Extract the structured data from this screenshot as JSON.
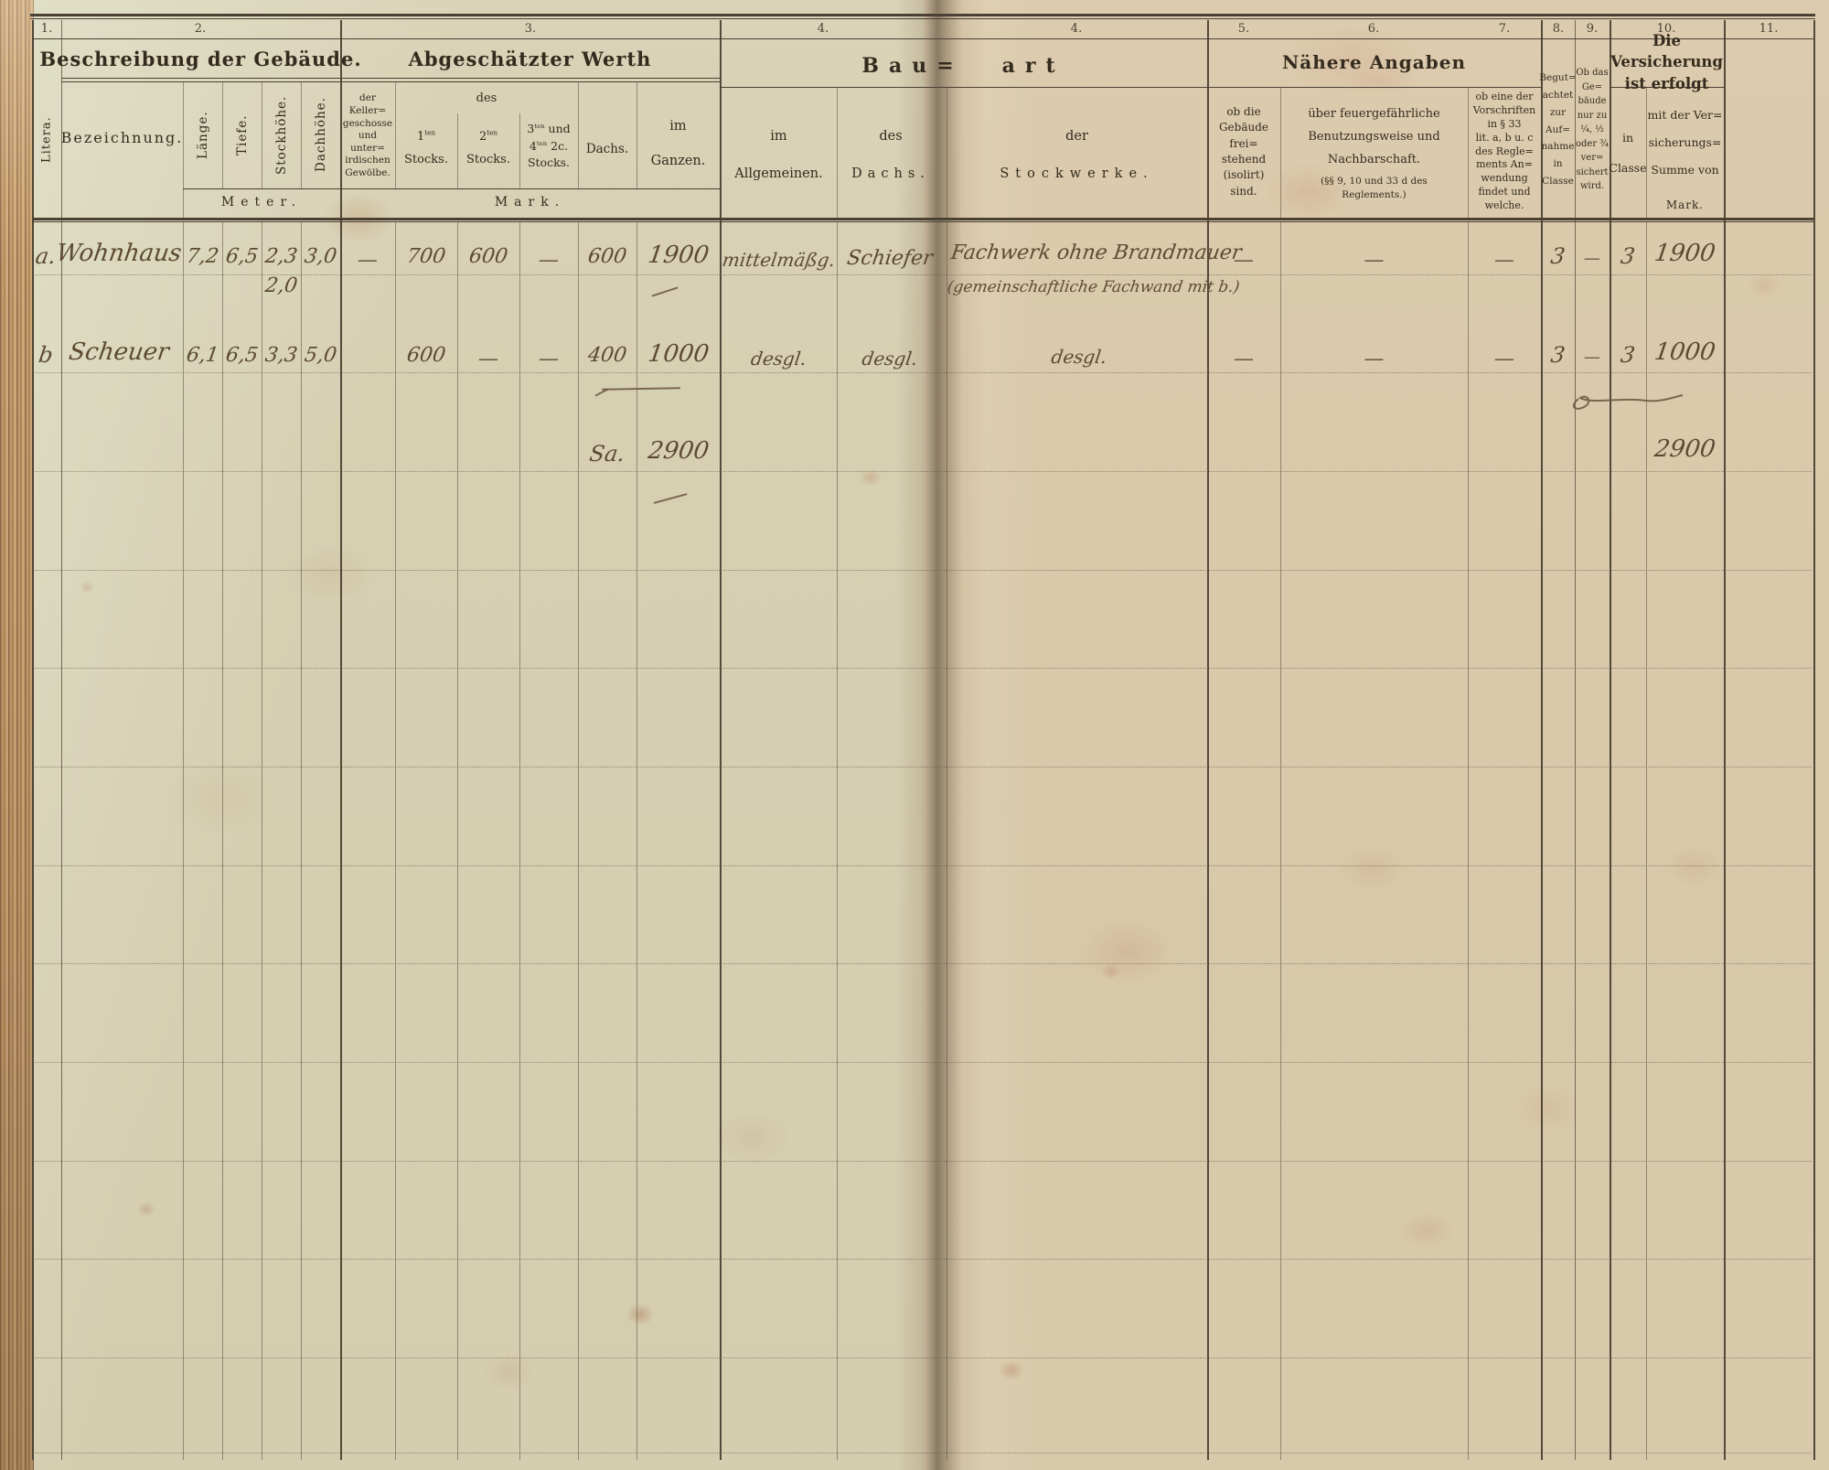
{
  "column_numbers": {
    "c1": "1.",
    "c2": "2.",
    "c3": "3.",
    "c4_left": "4.",
    "c4_right": "4.",
    "c5": "5.",
    "c6": "6.",
    "c7": "7.",
    "c8": "8.",
    "c9": "9.",
    "c10": "10.",
    "c11": "11."
  },
  "header": {
    "litera": "Litera.",
    "beschreibung_title": "Beschreibung der Gebäude.",
    "bezeichnung": "Bezeichnung.",
    "laenge": "Länge.",
    "tiefe": "Tiefe.",
    "stockhoehe": "Stockhöhe.",
    "dachhoehe": "Dachhöhe.",
    "meter_unit": "Meter.",
    "werth_title": "Abgeschätzter Werth",
    "keller_l1": "der Keller=",
    "keller_l2": "geschosse",
    "keller_l3": "und unter=",
    "keller_l4": "irdischen",
    "keller_l5": "Gewölbe.",
    "des_label": "des",
    "stock1_num": "1",
    "stock1_sup": "ten",
    "stock1_word": "Stocks.",
    "stock2_num": "2",
    "stock2_sup": "ten",
    "stock2_word": "Stocks.",
    "stock34_l1a": "3",
    "stock34_sup1": "ten",
    "stock34_l1b": " und",
    "stock34_l2a": "4",
    "stock34_sup2": "ten",
    "stock34_l2b": " 2c.",
    "stock34_word": "Stocks.",
    "dachs": "Dachs.",
    "ganzen_l1": "im",
    "ganzen_l2": "Ganzen.",
    "mark_unit": "Mark.",
    "bauart_l": "Bau=",
    "bauart_r": "art",
    "allgemeinen_l1": "im",
    "allgemeinen_l2": "Allgemeinen.",
    "bauart_dach_l1": "des",
    "bauart_dach_l2": "Dachs.",
    "stockwerke_l1": "der",
    "stockwerke_l2": "Stockwerke.",
    "naehere_angaben": "Nähere Angaben",
    "frei_l1": "ob die",
    "frei_l2": "Gebäude",
    "frei_l3": "frei=",
    "frei_l4": "stehend",
    "frei_l5": "(isolirt)",
    "frei_l6": "sind.",
    "feuer_l1": "über feuergefährliche",
    "feuer_l2": "Benutzungsweise und",
    "feuer_l3": "Nachbarschaft.",
    "feuer_l4": "(§§ 9, 10 und 33 d des",
    "feuer_l5": "Reglements.)",
    "vorschrift_l1": "ob eine der",
    "vorschrift_l2": "Vorschriften",
    "vorschrift_l3": "in § 33",
    "vorschrift_l4": "lit. a, b u. c",
    "vorschrift_l5": "des Regle=",
    "vorschrift_l6": "ments An=",
    "vorschrift_l7": "wendung",
    "vorschrift_l8": "findet und",
    "vorschrift_l9": "welche.",
    "begut_l1": "Begut=",
    "begut_l2": "achtet",
    "begut_l3": "zur",
    "begut_l4": "Auf=",
    "begut_l5": "nahme",
    "begut_l6": "in",
    "begut_l7": "Classe",
    "anteil_l1": "Ob das",
    "anteil_l2": "Ge=",
    "anteil_l3": "bäude",
    "anteil_l4": "nur zu",
    "anteil_l5": "¼, ½",
    "anteil_l6": "oder ¾",
    "anteil_l7": "ver=",
    "anteil_l8": "sichert",
    "anteil_l9": "wird.",
    "versicherung_l1": "Die Versicherung",
    "versicherung_l2": "ist erfolgt",
    "classe_l1": "in",
    "classe_l2": "Classe",
    "summe_l1": "mit der Ver=",
    "summe_l2": "sicherungs=",
    "summe_l3": "Summe von",
    "summe_mark": "Mark."
  },
  "entries": [
    {
      "litera": "a.",
      "bezeichnung": "Wohnhaus",
      "laenge": "7,2",
      "tiefe": "6,5",
      "stockhoehe": "2,3",
      "stockhoehe2": "2,0",
      "dachhoehe": "3,0",
      "keller": "—",
      "stock1": "700",
      "stock2": "600",
      "stock34": "—",
      "dachs": "600",
      "ganzen": "1900",
      "bauart_allgemein": "mittelmäßg.",
      "bauart_dach": "Schiefer",
      "bauart_stockwerke": "Fachwerk ohne Brandmauer",
      "bauart_stockwerke2": "(gemeinschaftliche Fachwand mit b.)",
      "freistehend": "—",
      "feuergefahr": "—",
      "vorschriften": "—",
      "begutachtet": "3",
      "anteil": "—",
      "classe": "3",
      "summe": "1900"
    },
    {
      "litera": "b",
      "bezeichnung": "Scheuer",
      "laenge": "6,1",
      "tiefe": "6,5",
      "stockhoehe": "3,3",
      "dachhoehe": "5,0",
      "stock1": "600",
      "stock2": "—",
      "stock34": "—",
      "dachs": "400",
      "ganzen": "1000",
      "bauart_allgemein": "desgl.",
      "bauart_dach": "desgl.",
      "bauart_stockwerke": "desgl.",
      "freistehend": "—",
      "feuergefahr": "—",
      "vorschriften": "—",
      "begutachtet": "3",
      "anteil": "—",
      "classe": "3",
      "summe": "1000"
    }
  ],
  "total": {
    "label": "Sa.",
    "ganzen": "2900",
    "summe": "2900"
  }
}
